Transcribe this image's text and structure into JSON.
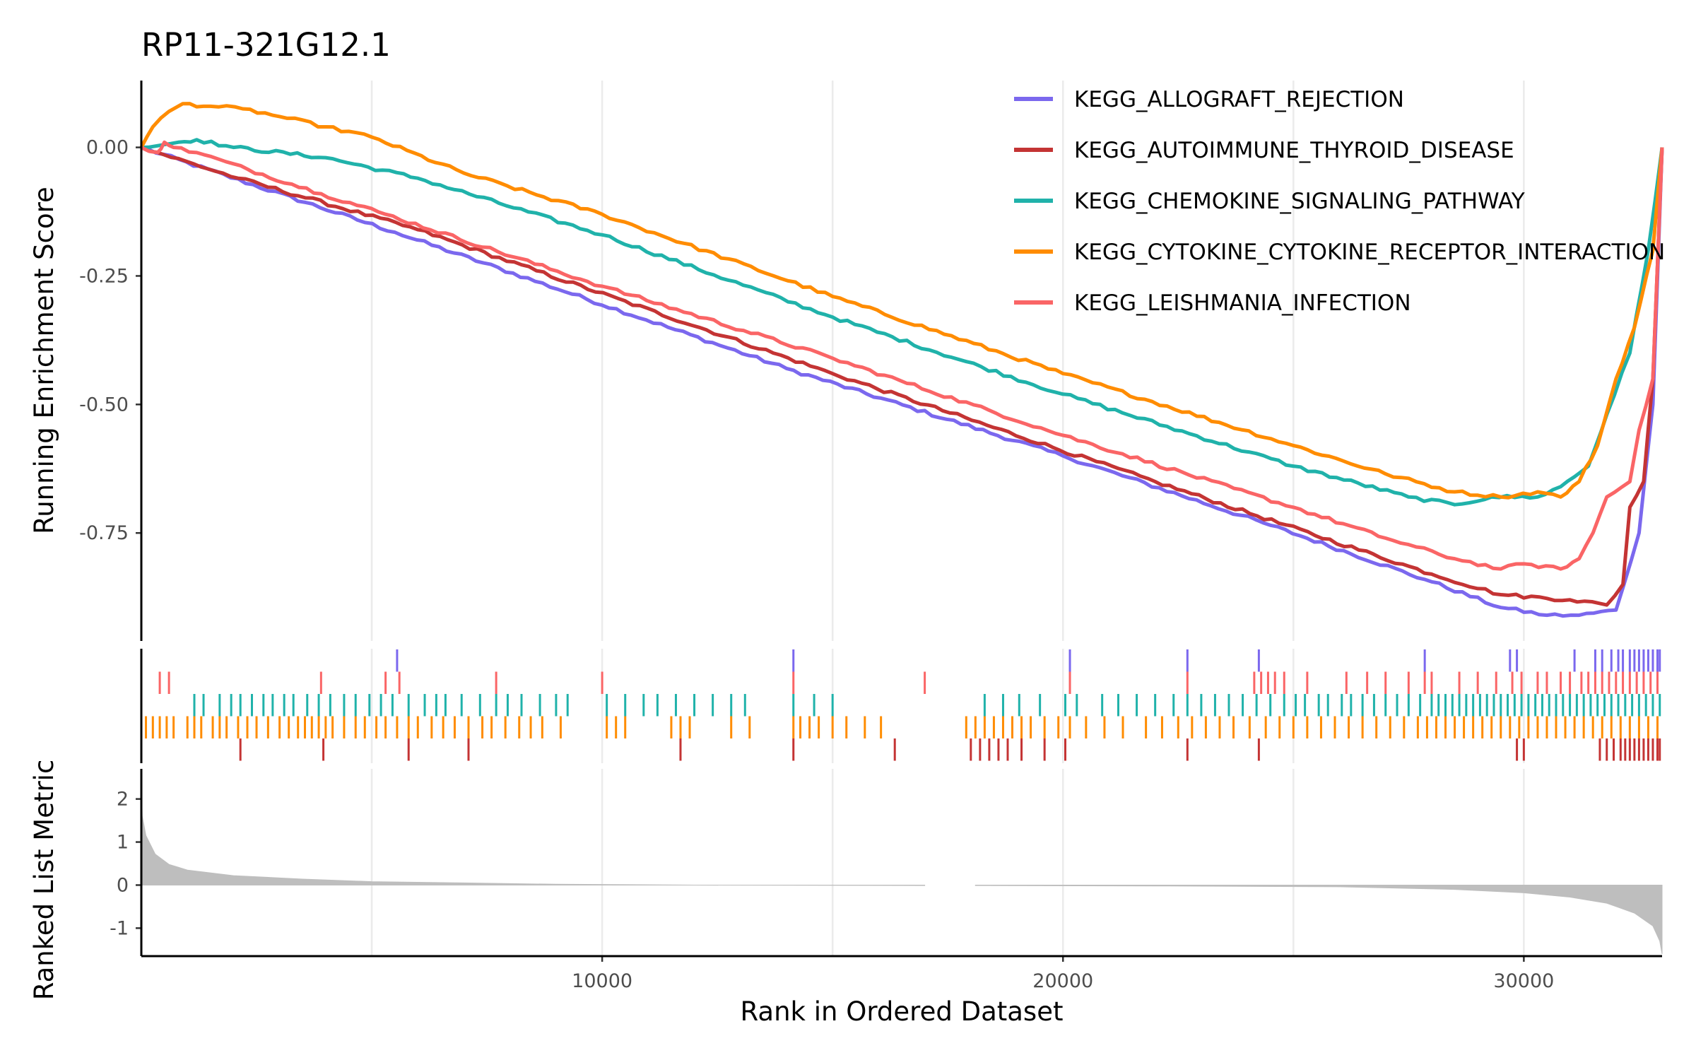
{
  "chart_data": {
    "type": "line",
    "title": "RP11-321G12.1",
    "xlabel": "Rank in Ordered Dataset",
    "panels": {
      "enrichment": {
        "ylabel": "Running Enrichment Score",
        "ylim": [
          -0.96,
          0.13
        ],
        "yticks": [
          0.0,
          -0.25,
          -0.5,
          -0.75
        ],
        "ytick_labels": [
          "0.00",
          "-0.25",
          "-0.50",
          "-0.75"
        ]
      },
      "ranked_metric": {
        "ylabel": "Ranked List Metric",
        "ylim": [
          -1.65,
          2.7
        ],
        "yticks": [
          2,
          1,
          0,
          -1
        ],
        "ytick_labels": [
          "2",
          "1",
          "0",
          "-1"
        ],
        "gap": [
          17000,
          18100
        ]
      }
    },
    "xlim": [
      0,
      33000
    ],
    "xticks": [
      10000,
      20000,
      30000
    ],
    "xtick_labels": [
      "10000",
      "20000",
      "30000"
    ],
    "grid": true,
    "legend_position": "top-right",
    "series": [
      {
        "name": "KEGG_ALLOGRAFT_REJECTION",
        "color": "#7B68EE",
        "es_points": [
          [
            0,
            0
          ],
          [
            5500,
            -0.165
          ],
          [
            14000,
            -0.43
          ],
          [
            20000,
            -0.6
          ],
          [
            24500,
            -0.735
          ],
          [
            28000,
            -0.845
          ],
          [
            29500,
            -0.895
          ],
          [
            30500,
            -0.91
          ],
          [
            31200,
            -0.91
          ],
          [
            32000,
            -0.9
          ],
          [
            32500,
            -0.75
          ],
          [
            32800,
            -0.5
          ],
          [
            33000,
            0
          ]
        ],
        "hits": [
          5550,
          14150,
          20150,
          22700,
          24250,
          27850,
          29700,
          29850,
          31100,
          31550,
          31700,
          31900,
          32050,
          32150,
          32300,
          32400,
          32500,
          32600,
          32700,
          32800,
          32900,
          32950
        ]
      },
      {
        "name": "KEGG_AUTOIMMUNE_THYROID_DISEASE",
        "color": "#C43434",
        "es_points": [
          [
            0,
            0
          ],
          [
            2100,
            -0.06
          ],
          [
            6000,
            -0.16
          ],
          [
            15000,
            -0.44
          ],
          [
            22000,
            -0.65
          ],
          [
            28000,
            -0.83
          ],
          [
            29500,
            -0.87
          ],
          [
            31000,
            -0.88
          ],
          [
            31800,
            -0.89
          ],
          [
            32150,
            -0.85
          ],
          [
            32300,
            -0.7
          ],
          [
            32600,
            -0.65
          ],
          [
            32800,
            -0.45
          ],
          [
            33000,
            0
          ]
        ],
        "hits": [
          2150,
          3950,
          5800,
          7100,
          11700,
          14150,
          16350,
          18000,
          18200,
          18400,
          18600,
          18800,
          19100,
          19600,
          20050,
          22700,
          24250,
          29850,
          30000,
          31650,
          31800,
          31950,
          32100,
          32200,
          32300,
          32400,
          32500,
          32600,
          32700,
          32800,
          32900,
          32950
        ]
      },
      {
        "name": "KEGG_CHEMOKINE_SIGNALING_PATHWAY",
        "color": "#20B2AA",
        "es_points": [
          [
            0,
            0
          ],
          [
            800,
            0.01
          ],
          [
            1200,
            0.015
          ],
          [
            2000,
            0.0
          ],
          [
            4000,
            -0.02
          ],
          [
            6000,
            -0.06
          ],
          [
            10000,
            -0.17
          ],
          [
            15000,
            -0.33
          ],
          [
            20000,
            -0.48
          ],
          [
            25000,
            -0.62
          ],
          [
            27500,
            -0.68
          ],
          [
            28500,
            -0.695
          ],
          [
            29300,
            -0.68
          ],
          [
            30300,
            -0.68
          ],
          [
            30800,
            -0.66
          ],
          [
            31400,
            -0.62
          ],
          [
            31800,
            -0.52
          ],
          [
            32300,
            -0.4
          ],
          [
            32700,
            -0.2
          ],
          [
            33000,
            0
          ]
        ],
        "hits": [
          1150,
          1350,
          1700,
          1950,
          2150,
          2400,
          2650,
          2850,
          3100,
          3300,
          3600,
          3850,
          4100,
          4400,
          4650,
          4950,
          5200,
          5450,
          5800,
          6150,
          6400,
          6600,
          6950,
          7350,
          7700,
          7950,
          8250,
          8650,
          9000,
          9250,
          10100,
          10500,
          10900,
          11200,
          11600,
          12000,
          12400,
          12800,
          13100,
          14150,
          14600,
          15000,
          18300,
          18700,
          19050,
          19500,
          20050,
          20300,
          20850,
          21200,
          21600,
          22000,
          22400,
          22700,
          23000,
          23300,
          23600,
          23900,
          24200,
          24500,
          24800,
          25050,
          25250,
          25550,
          25750,
          26050,
          26250,
          26500,
          26750,
          27000,
          27250,
          27500,
          27750,
          28000,
          28150,
          28300,
          28450,
          28600,
          28750,
          28900,
          29050,
          29200,
          29350,
          29500,
          29650,
          29800,
          29950,
          30100,
          30250,
          30400,
          30550,
          30700,
          30850,
          31000,
          31150,
          31300,
          31450,
          31600,
          31750,
          31900,
          32050,
          32200,
          32350,
          32500,
          32650,
          32800,
          32950
        ]
      },
      {
        "name": "KEGG_CYTOKINE_CYTOKINE_RECEPTOR_INTERACTION",
        "color": "#FF8C00",
        "es_points": [
          [
            0,
            0
          ],
          [
            250,
            0.04
          ],
          [
            600,
            0.07
          ],
          [
            900,
            0.085
          ],
          [
            1500,
            0.08
          ],
          [
            2200,
            0.075
          ],
          [
            3000,
            0.06
          ],
          [
            4000,
            0.04
          ],
          [
            5000,
            0.02
          ],
          [
            7000,
            -0.05
          ],
          [
            10000,
            -0.13
          ],
          [
            15000,
            -0.29
          ],
          [
            20000,
            -0.44
          ],
          [
            25000,
            -0.58
          ],
          [
            27000,
            -0.635
          ],
          [
            28500,
            -0.67
          ],
          [
            29500,
            -0.68
          ],
          [
            30300,
            -0.67
          ],
          [
            30800,
            -0.68
          ],
          [
            31200,
            -0.65
          ],
          [
            31600,
            -0.58
          ],
          [
            32000,
            -0.45
          ],
          [
            32400,
            -0.35
          ],
          [
            32800,
            -0.2
          ],
          [
            33000,
            0
          ]
        ],
        "hits": [
          100,
          250,
          400,
          550,
          700,
          1000,
          1150,
          1300,
          1550,
          1700,
          1850,
          2100,
          2300,
          2500,
          2750,
          3000,
          3200,
          3400,
          3550,
          3700,
          3850,
          4000,
          4150,
          4400,
          4650,
          4850,
          5100,
          5300,
          5550,
          5800,
          6000,
          6300,
          6550,
          6800,
          7100,
          7400,
          7600,
          7900,
          8200,
          8450,
          8700,
          9100,
          10100,
          10300,
          10500,
          11500,
          11700,
          11900,
          12800,
          13200,
          14150,
          14300,
          14500,
          14700,
          15000,
          15300,
          15700,
          16050,
          17900,
          18100,
          18300,
          18500,
          18700,
          18900,
          19100,
          19300,
          19600,
          19900,
          20150,
          20500,
          20900,
          21300,
          21800,
          22150,
          22500,
          22800,
          23100,
          23400,
          23700,
          24050,
          24400,
          24700,
          25000,
          25300,
          25600,
          25900,
          26200,
          26500,
          26800,
          27100,
          27400,
          27700,
          27900,
          28100,
          28300,
          28500,
          28700,
          28900,
          29100,
          29300,
          29500,
          29700,
          29900,
          30100,
          30300,
          30500,
          30700,
          30900,
          31100,
          31300,
          31500,
          31700,
          31900,
          32100,
          32300,
          32500,
          32700,
          32900
        ]
      },
      {
        "name": "KEGG_LEISHMANIA_INFECTION",
        "color": "#FA6566",
        "es_points": [
          [
            0,
            0
          ],
          [
            350,
            -0.01
          ],
          [
            500,
            0.01
          ],
          [
            700,
            0.0
          ],
          [
            1200,
            -0.01
          ],
          [
            3900,
            -0.09
          ],
          [
            5300,
            -0.13
          ],
          [
            10000,
            -0.27
          ],
          [
            15000,
            -0.41
          ],
          [
            20000,
            -0.56
          ],
          [
            25000,
            -0.7
          ],
          [
            27000,
            -0.76
          ],
          [
            28500,
            -0.8
          ],
          [
            29500,
            -0.82
          ],
          [
            30000,
            -0.81
          ],
          [
            30800,
            -0.82
          ],
          [
            31200,
            -0.8
          ],
          [
            31500,
            -0.75
          ],
          [
            31800,
            -0.68
          ],
          [
            32300,
            -0.65
          ],
          [
            32500,
            -0.55
          ],
          [
            32800,
            -0.45
          ],
          [
            33000,
            0
          ]
        ],
        "hits": [
          400,
          600,
          3900,
          5300,
          5600,
          7700,
          10000,
          14150,
          17000,
          20150,
          22700,
          24150,
          24300,
          24450,
          24600,
          24800,
          25300,
          26150,
          26600,
          27000,
          27500,
          27850,
          28000,
          28600,
          29000,
          29400,
          29750,
          29950,
          30300,
          30500,
          30800,
          31000,
          31250,
          31400,
          31550,
          31700,
          31850,
          32000,
          32150,
          32300,
          32450,
          32600,
          32750,
          32900
        ]
      }
    ],
    "ranked_metric_points": [
      [
        0,
        2.45
      ],
      [
        20,
        1.6
      ],
      [
        100,
        1.15
      ],
      [
        300,
        0.72
      ],
      [
        600,
        0.48
      ],
      [
        1000,
        0.35
      ],
      [
        2000,
        0.22
      ],
      [
        3500,
        0.14
      ],
      [
        5000,
        0.08
      ],
      [
        7000,
        0.05
      ],
      [
        9000,
        0.02
      ],
      [
        12000,
        0.0
      ],
      [
        17000,
        -0.01
      ],
      [
        18100,
        -0.01
      ],
      [
        22000,
        -0.02
      ],
      [
        26000,
        -0.04
      ],
      [
        28500,
        -0.1
      ],
      [
        30000,
        -0.18
      ],
      [
        31000,
        -0.28
      ],
      [
        31800,
        -0.42
      ],
      [
        32400,
        -0.65
      ],
      [
        32800,
        -0.95
      ],
      [
        32950,
        -1.3
      ],
      [
        33000,
        -1.6
      ]
    ]
  }
}
